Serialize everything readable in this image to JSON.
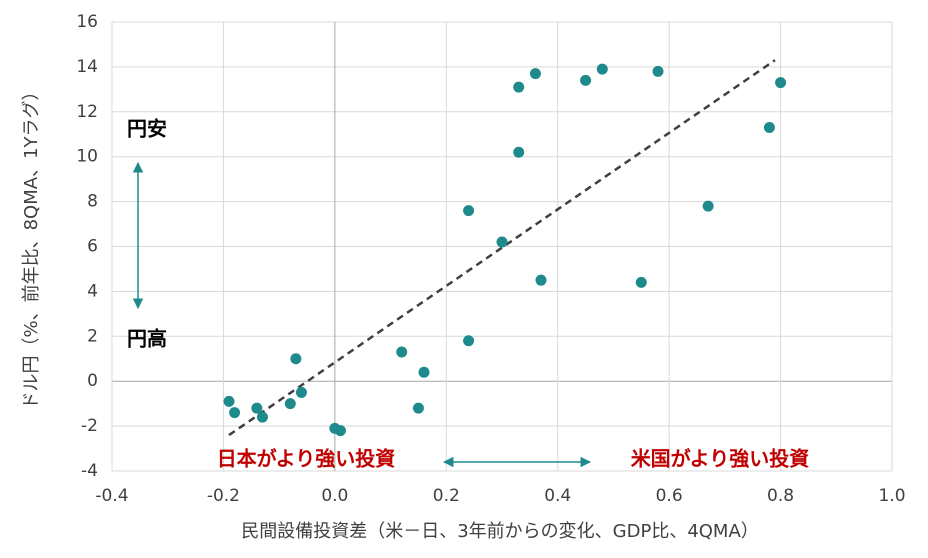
{
  "chart_data": {
    "type": "scatter",
    "x_label": "民間設備投資差（米－日、3年前からの変化、GDP比、4QMA）",
    "y_label": "ドル円（%、前年比、8QMA、1Yラグ）",
    "x": [
      -0.19,
      -0.18,
      -0.14,
      -0.13,
      -0.08,
      -0.06,
      -0.07,
      0.0,
      0.01,
      0.12,
      0.16,
      0.15,
      0.24,
      0.24,
      0.3,
      0.33,
      0.33,
      0.36,
      0.37,
      0.45,
      0.48,
      0.55,
      0.58,
      0.67,
      0.78,
      0.8
    ],
    "values": [
      -0.9,
      -1.4,
      -1.2,
      -1.6,
      -1.0,
      -0.5,
      1.0,
      -2.1,
      -2.2,
      1.3,
      0.4,
      -1.2,
      1.8,
      7.6,
      6.2,
      13.1,
      10.2,
      13.7,
      4.5,
      13.4,
      13.9,
      4.4,
      13.8,
      7.8,
      11.3,
      13.3
    ],
    "color": "#1f8a8c",
    "trendline": {
      "x": [
        -0.19,
        0.79
      ],
      "y": [
        -2.4,
        14.3
      ],
      "color": "#404040"
    },
    "xlim": [
      -0.4,
      1.0
    ],
    "xticks": [
      -0.4,
      -0.2,
      {
        "value": 0,
        "label": "0.0"
      },
      0.2,
      0.4,
      0.6,
      0.8,
      {
        "value": 1,
        "label": "1.0"
      }
    ],
    "negative_xtick_color": "#c00000",
    "ylim": [
      -4,
      16
    ],
    "yticks": [
      -4,
      -2,
      0,
      2,
      4,
      6,
      8,
      10,
      12,
      14,
      16
    ],
    "grid": true,
    "annotations": {
      "yen_weak": "円安",
      "yen_strong": "円高",
      "japan_stronger": "日本がより強い投資",
      "us_stronger": "米国がより強い投資"
    }
  }
}
